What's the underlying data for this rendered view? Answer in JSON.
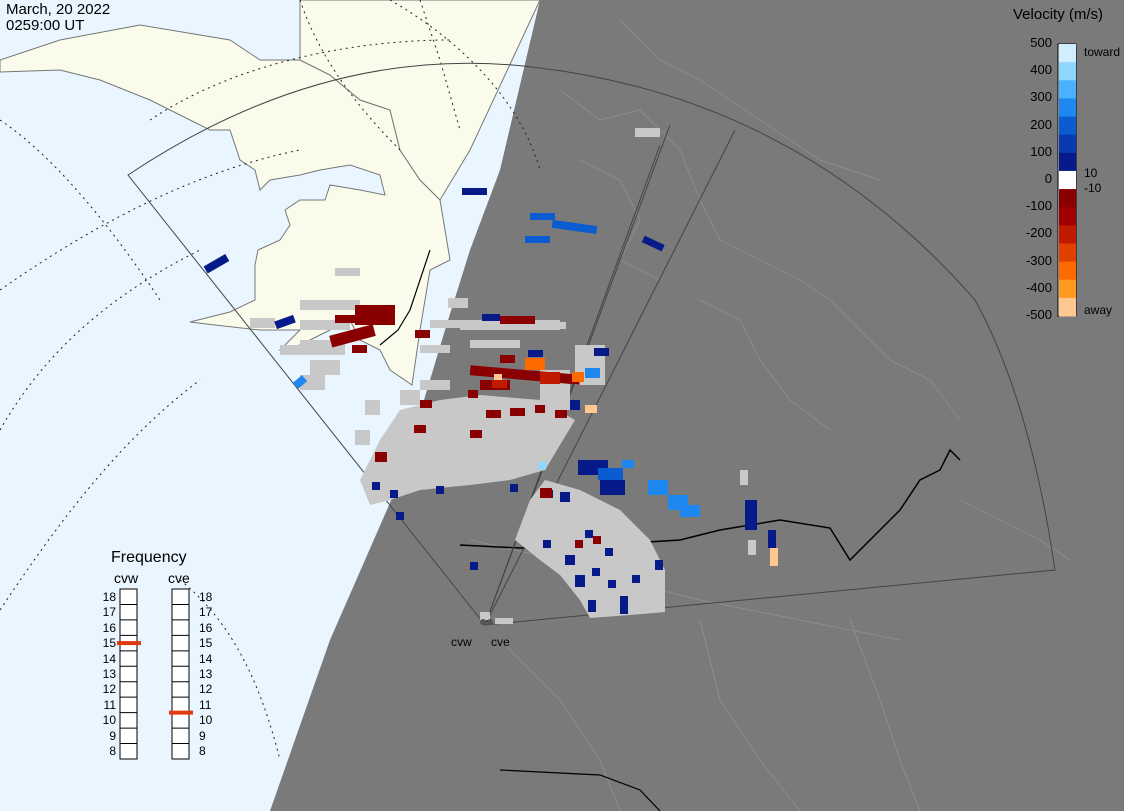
{
  "header": {
    "date": "March, 20 2022",
    "time": "0259:00 UT"
  },
  "colorbar": {
    "title": "Velocity (m/s)",
    "ticks": [
      "500",
      "400",
      "300",
      "200",
      "100",
      "0",
      "-100",
      "-200",
      "-300",
      "-400",
      "-500"
    ],
    "inner_labels": [
      "10",
      "-10"
    ],
    "toward_label": "toward",
    "away_label": "away",
    "colors": [
      "#cfeeff",
      "#8fd6ff",
      "#4ab0ff",
      "#1e88f0",
      "#0a5cd0",
      "#0a3ab0",
      "#061a8a",
      "#ffffff",
      "#8a0000",
      "#a00000",
      "#c01a00",
      "#e04000",
      "#ff6a00",
      "#ff9a20",
      "#ffc890"
    ]
  },
  "frequency": {
    "title": "Frequency",
    "radars": [
      "cvw",
      "cve"
    ],
    "scale": [
      "18",
      "17",
      "16",
      "15",
      "14",
      "13",
      "12",
      "11",
      "10",
      "9",
      "8"
    ],
    "selected": {
      "cvw": 15,
      "cve": 10.5
    },
    "marker_color": "#e03a10"
  },
  "radar_labels": [
    "cvw",
    "cve"
  ],
  "map_colors": {
    "ocean": "#e9f6ff",
    "land": "#fbfbeb",
    "night": "#7a7a7a",
    "ground_scatter": "#c8c8c8"
  }
}
